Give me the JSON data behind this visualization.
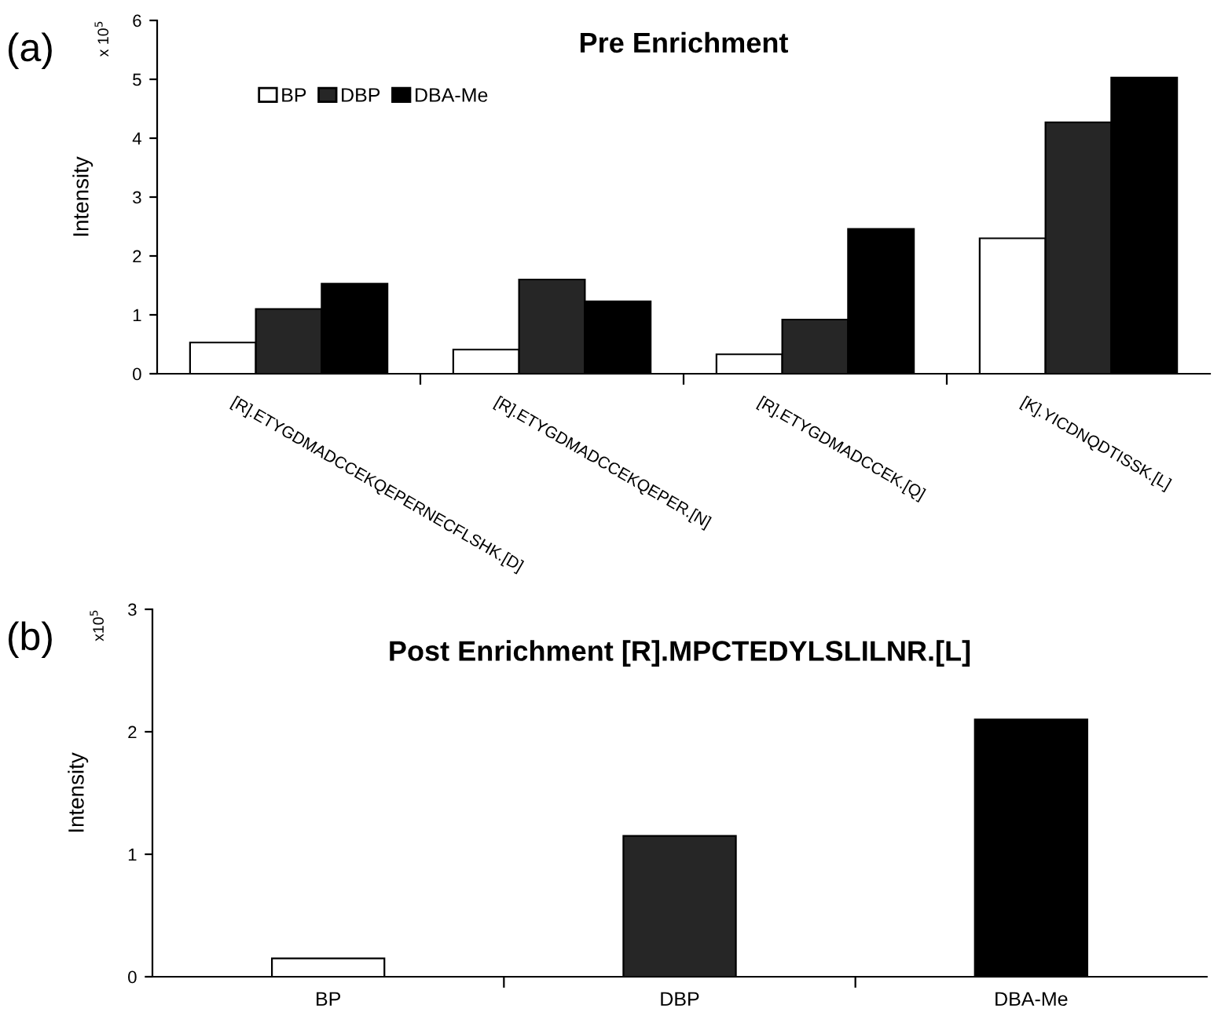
{
  "chart_data": [
    {
      "type": "bar",
      "title": "Pre Enrichment",
      "ylabel": "Intensity",
      "categories": [
        "[R].ETYGDMADCCEKQEPERNECFLSHK.[D]",
        "[R].ETYGDMADCCEKQEPER.[N]",
        "[R].ETYGDMADCCEK.[Q]",
        "[K].YICDNQDTISSK.[L]"
      ],
      "series": [
        {
          "name": "BP",
          "color": "#ffffff",
          "values": [
            0.53,
            0.41,
            0.33,
            2.3
          ]
        },
        {
          "name": "DBP",
          "color": "#262626",
          "values": [
            1.1,
            1.6,
            0.92,
            4.27
          ]
        },
        {
          "name": "DBA-Me",
          "color": "#000000",
          "values": [
            1.53,
            1.23,
            2.46,
            5.03
          ]
        }
      ],
      "ylim": [
        0,
        6
      ],
      "yticks": [
        0,
        1,
        2,
        3,
        4,
        5,
        6
      ],
      "legend": "top left",
      "grid": false,
      "annotations": [
        "(a)",
        "x 10$^{5}$"
      ]
    },
    {
      "type": "bar",
      "title": "Post Enrichment [R].MPCTEDYLSLILNR.[L]",
      "ylabel": "Intensity",
      "categories": [
        "BP",
        "DBP",
        "DBA-Me"
      ],
      "values": [
        0.15,
        1.15,
        2.1
      ],
      "colors": [
        "#ffffff",
        "#262626",
        "#000000"
      ],
      "ylim": [
        0,
        3
      ],
      "yticks": [
        0,
        1,
        2,
        3
      ],
      "legend": false,
      "grid": false,
      "annotations": [
        "(b)",
        "x10$^{5}$"
      ]
    }
  ]
}
